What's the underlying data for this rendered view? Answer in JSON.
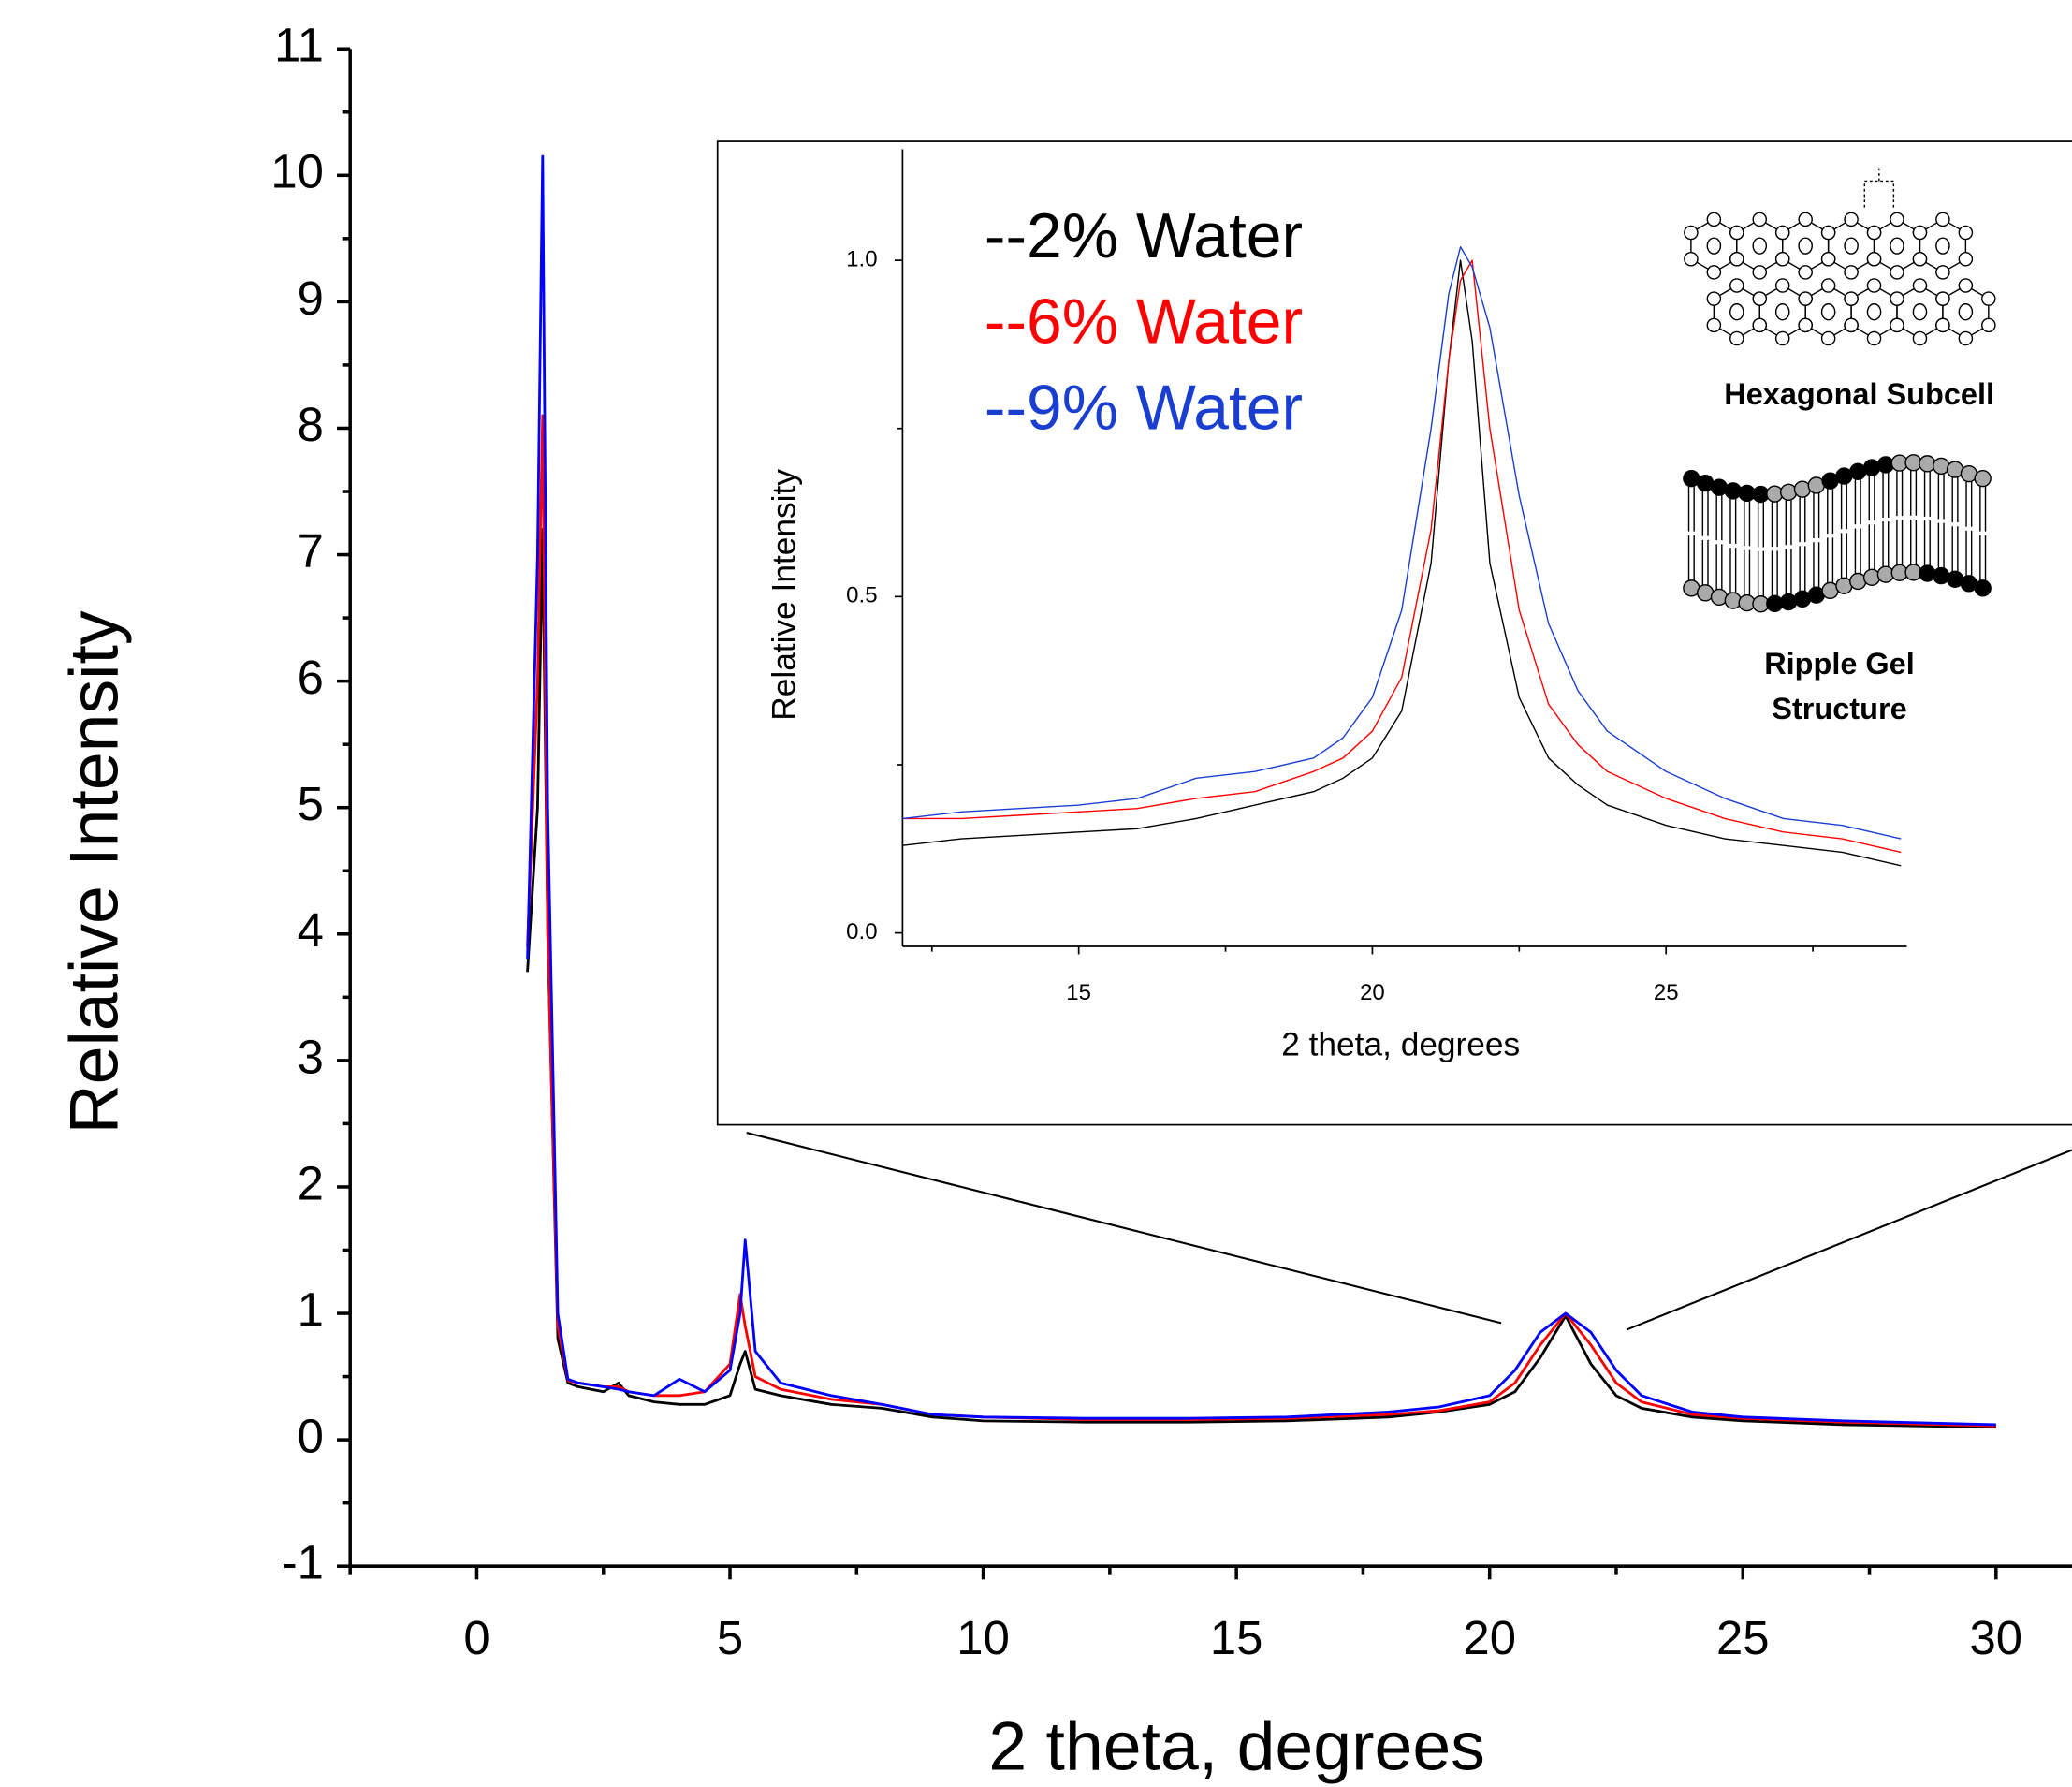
{
  "chart_data": [
    {
      "type": "line",
      "x_label": "2 theta, degrees",
      "y_label": "Relative Intensity",
      "x": [
        1.0,
        1.2,
        1.3,
        1.4,
        1.6,
        1.8,
        2,
        2.5,
        2.8,
        3,
        3.5,
        4,
        4.5,
        5,
        5.2,
        5.3,
        5.5,
        6,
        7,
        8,
        9,
        10,
        12,
        14,
        16,
        18,
        19,
        20,
        20.5,
        21,
        21.5,
        22,
        22.5,
        23,
        24,
        25,
        27,
        30
      ],
      "series": [
        {
          "name": "--2% Water",
          "color": "#000000",
          "values": [
            3.7,
            5,
            7.2,
            4,
            0.8,
            0.45,
            0.42,
            0.38,
            0.45,
            0.35,
            0.3,
            0.28,
            0.28,
            0.35,
            0.6,
            0.7,
            0.4,
            0.35,
            0.28,
            0.25,
            0.18,
            0.15,
            0.14,
            0.14,
            0.15,
            0.18,
            0.22,
            0.28,
            0.38,
            0.65,
            0.98,
            0.6,
            0.35,
            0.25,
            0.18,
            0.15,
            0.12,
            0.1
          ]
        },
        {
          "name": "--6% Water",
          "color": "#ff0000",
          "values": [
            3.9,
            6,
            8.1,
            4,
            0.9,
            0.47,
            0.45,
            0.42,
            0.42,
            0.38,
            0.35,
            0.35,
            0.38,
            0.6,
            1.15,
            0.9,
            0.5,
            0.4,
            0.32,
            0.28,
            0.2,
            0.18,
            0.16,
            0.16,
            0.17,
            0.2,
            0.23,
            0.3,
            0.45,
            0.75,
            1.0,
            0.75,
            0.45,
            0.3,
            0.2,
            0.17,
            0.14,
            0.11
          ]
        },
        {
          "name": "--9% Water",
          "color": "#0000ff",
          "values": [
            3.8,
            7,
            10.15,
            5,
            1.0,
            0.48,
            0.45,
            0.42,
            0.4,
            0.38,
            0.35,
            0.48,
            0.38,
            0.55,
            1.0,
            1.58,
            0.7,
            0.45,
            0.35,
            0.28,
            0.2,
            0.18,
            0.17,
            0.17,
            0.18,
            0.22,
            0.26,
            0.35,
            0.55,
            0.85,
            1.0,
            0.85,
            0.55,
            0.35,
            0.22,
            0.18,
            0.15,
            0.12
          ]
        }
      ],
      "xlim": [
        -2.5,
        31.5
      ],
      "ylim": [
        -1,
        11
      ],
      "xticks": [
        0,
        5,
        10,
        15,
        20,
        25,
        30
      ],
      "x_minor_ticks": [
        -2.5,
        2.5,
        7.5,
        12.5,
        17.5,
        22.5,
        27.5
      ],
      "yticks": [
        -1,
        0,
        1,
        2,
        3,
        4,
        5,
        6,
        7,
        8,
        9,
        10,
        11
      ],
      "y_minor_ticks": [
        -0.5,
        0.5,
        1.5,
        2.5,
        3.5,
        4.5,
        5.5,
        6.5,
        7.5,
        8.5,
        9.5,
        10.5
      ],
      "legend": false
    },
    {
      "type": "line",
      "x_label": "2 theta, degrees",
      "y_label": "Relative Intensity",
      "x": [
        12,
        13,
        14,
        15,
        16,
        17,
        18,
        19,
        19.5,
        20,
        20.5,
        21,
        21.3,
        21.5,
        21.7,
        22,
        22.5,
        23,
        23.5,
        24,
        25,
        26,
        27,
        28,
        29
      ],
      "series": [
        {
          "name": "--2% Water",
          "color": "#000000",
          "values": [
            0.13,
            0.14,
            0.145,
            0.15,
            0.155,
            0.17,
            0.19,
            0.21,
            0.23,
            0.26,
            0.33,
            0.55,
            0.85,
            1.0,
            0.88,
            0.55,
            0.35,
            0.26,
            0.22,
            0.19,
            0.16,
            0.14,
            0.13,
            0.12,
            0.1
          ]
        },
        {
          "name": "--6% Water",
          "color": "#ff0000",
          "values": [
            0.17,
            0.17,
            0.175,
            0.18,
            0.185,
            0.2,
            0.21,
            0.24,
            0.26,
            0.3,
            0.38,
            0.6,
            0.85,
            0.97,
            1.0,
            0.75,
            0.48,
            0.34,
            0.28,
            0.24,
            0.2,
            0.17,
            0.15,
            0.14,
            0.12
          ]
        },
        {
          "name": "--9% Water",
          "color": "#1a3fd0",
          "values": [
            0.17,
            0.18,
            0.185,
            0.19,
            0.2,
            0.23,
            0.24,
            0.26,
            0.29,
            0.35,
            0.48,
            0.75,
            0.95,
            1.02,
            0.99,
            0.9,
            0.65,
            0.46,
            0.36,
            0.3,
            0.24,
            0.2,
            0.17,
            0.16,
            0.14
          ]
        }
      ],
      "xlim": [
        12,
        29.1
      ],
      "ylim": [
        -0.02,
        1.165
      ],
      "xticks": [
        15,
        20,
        25
      ],
      "x_minor_ticks": [
        12.5,
        17.5,
        22.5,
        27.5
      ],
      "yticks": [
        {
          "value": 0,
          "label": "0.0"
        },
        {
          "value": 0.5,
          "label": "0.5"
        },
        {
          "value": 1,
          "label": "1.0"
        }
      ],
      "y_minor_ticks": [
        0.25,
        0.75
      ],
      "legend": true,
      "annotations": [
        "Hexagonal Subcell",
        "Ripple Gel",
        "Structure"
      ]
    }
  ]
}
